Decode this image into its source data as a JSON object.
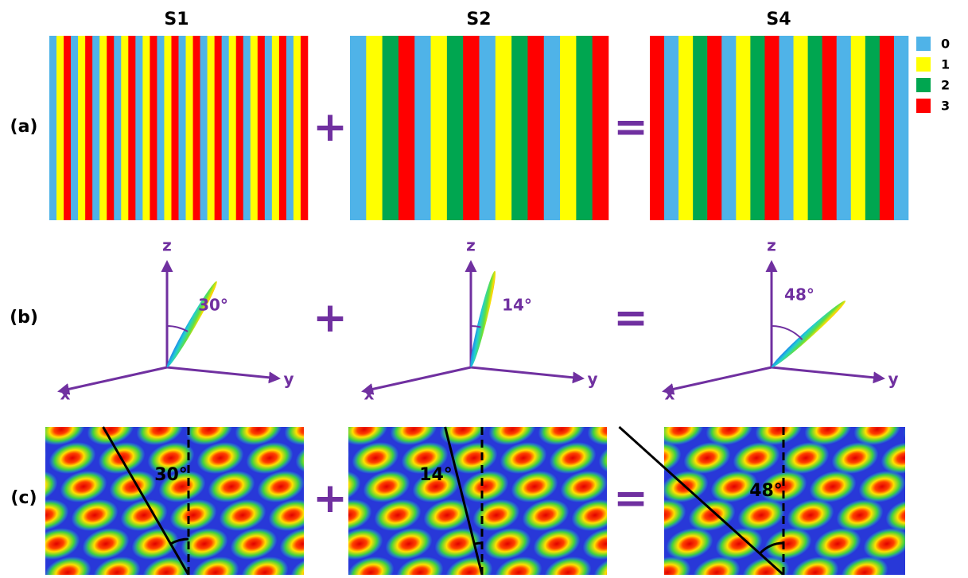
{
  "columns": [
    {
      "title": "S1",
      "angle": "30°"
    },
    {
      "title": "S2",
      "angle": "14°"
    },
    {
      "title": "S4",
      "angle": "48°"
    }
  ],
  "rows": [
    "(a)",
    "(b)",
    "(c)"
  ],
  "operators": {
    "plus": "+",
    "equals": "="
  },
  "legend": [
    "0",
    "1",
    "2",
    "3"
  ],
  "axes": {
    "x": "x",
    "y": "y",
    "z": "z"
  }
}
